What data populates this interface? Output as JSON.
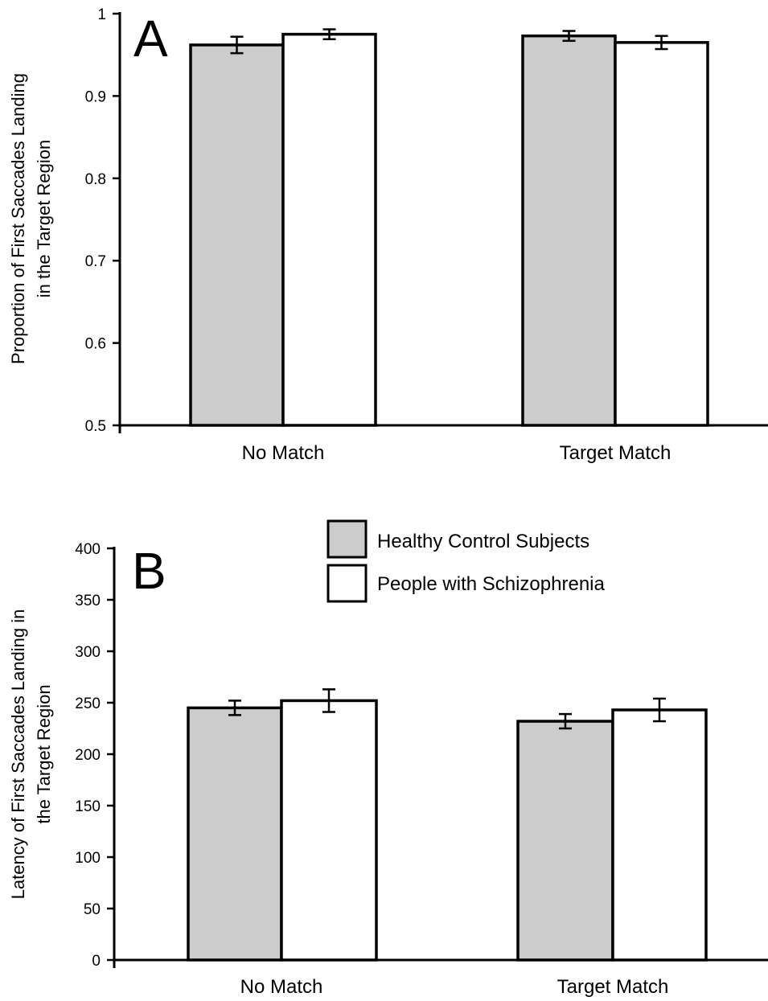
{
  "colors": {
    "healthy": "#cccccc",
    "schizophrenia": "#ffffff",
    "stroke": "#000000"
  },
  "legend": {
    "items": [
      {
        "label": "Healthy Control Subjects",
        "color": "#cccccc"
      },
      {
        "label": "People with Schizophrenia",
        "color": "#ffffff"
      }
    ]
  },
  "chart_data": [
    {
      "type": "bar",
      "panel_label": "A",
      "categories": [
        "No Match",
        "Target Match"
      ],
      "ylabel": [
        "Proportion of First Saccades Landing",
        "in the Target Region"
      ],
      "ylim": [
        0.5,
        1.0
      ],
      "yticks": [
        0.5,
        0.6,
        0.7,
        0.8,
        0.9,
        1.0
      ],
      "ytick_labels": [
        "0.5",
        "0.6",
        "0.7",
        "0.8",
        "0.9",
        "1"
      ],
      "series": [
        {
          "name": "Healthy Control Subjects",
          "values": [
            0.962,
            0.973
          ],
          "errors": [
            0.01,
            0.006
          ]
        },
        {
          "name": "People with Schizophrenia",
          "values": [
            0.975,
            0.965
          ],
          "errors": [
            0.006,
            0.008
          ]
        }
      ],
      "grid": false
    },
    {
      "type": "bar",
      "panel_label": "B",
      "categories": [
        "No Match",
        "Target Match"
      ],
      "ylabel": [
        "Latency of First Saccades Landing in",
        "the Target Region"
      ],
      "ylim": [
        0,
        400
      ],
      "yticks": [
        0,
        50,
        100,
        150,
        200,
        250,
        300,
        350,
        400
      ],
      "ytick_labels": [
        "0",
        "50",
        "100",
        "150",
        "200",
        "250",
        "300",
        "350",
        "400"
      ],
      "series": [
        {
          "name": "Healthy Control Subjects",
          "values": [
            245,
            232
          ],
          "errors": [
            7,
            7
          ]
        },
        {
          "name": "People with Schizophrenia",
          "values": [
            252,
            243
          ],
          "errors": [
            11,
            11
          ]
        }
      ],
      "grid": false
    }
  ]
}
